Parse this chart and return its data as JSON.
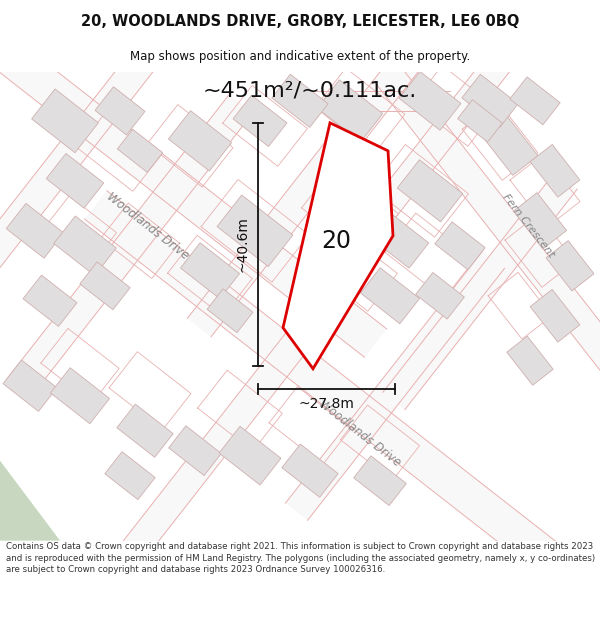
{
  "title_line1": "20, WOODLANDS DRIVE, GROBY, LEICESTER, LE6 0BQ",
  "title_line2": "Map shows position and indicative extent of the property.",
  "area_text": "~451m²/~0.111ac.",
  "label_number": "20",
  "dim_width": "~27.8m",
  "dim_height": "~40.6m",
  "road_label_upper": "Woodlands Drive",
  "road_label_lower": "Woodlands Drive",
  "road_label_right": "Fern Crescent",
  "footer_text": "Contains OS data © Crown copyright and database right 2021. This information is subject to Crown copyright and database rights 2023 and is reproduced with the permission of HM Land Registry. The polygons (including the associated geometry, namely x, y co-ordinates) are subject to Crown copyright and database rights 2023 Ordnance Survey 100026316.",
  "map_bg": "#f2f0f0",
  "road_fill": "#f9f8f8",
  "road_edge": "#e8b0b0",
  "block_fill": "#e0dede",
  "block_edge": "#d0b0b0",
  "property_edge": "#dd0000",
  "property_fill": "#ffffff",
  "dim_color": "#111111",
  "label_color": "#888888",
  "text_color": "#111111",
  "footer_bg": "#ffffff",
  "title_bg": "#ffffff",
  "sep_color": "#dddddd"
}
